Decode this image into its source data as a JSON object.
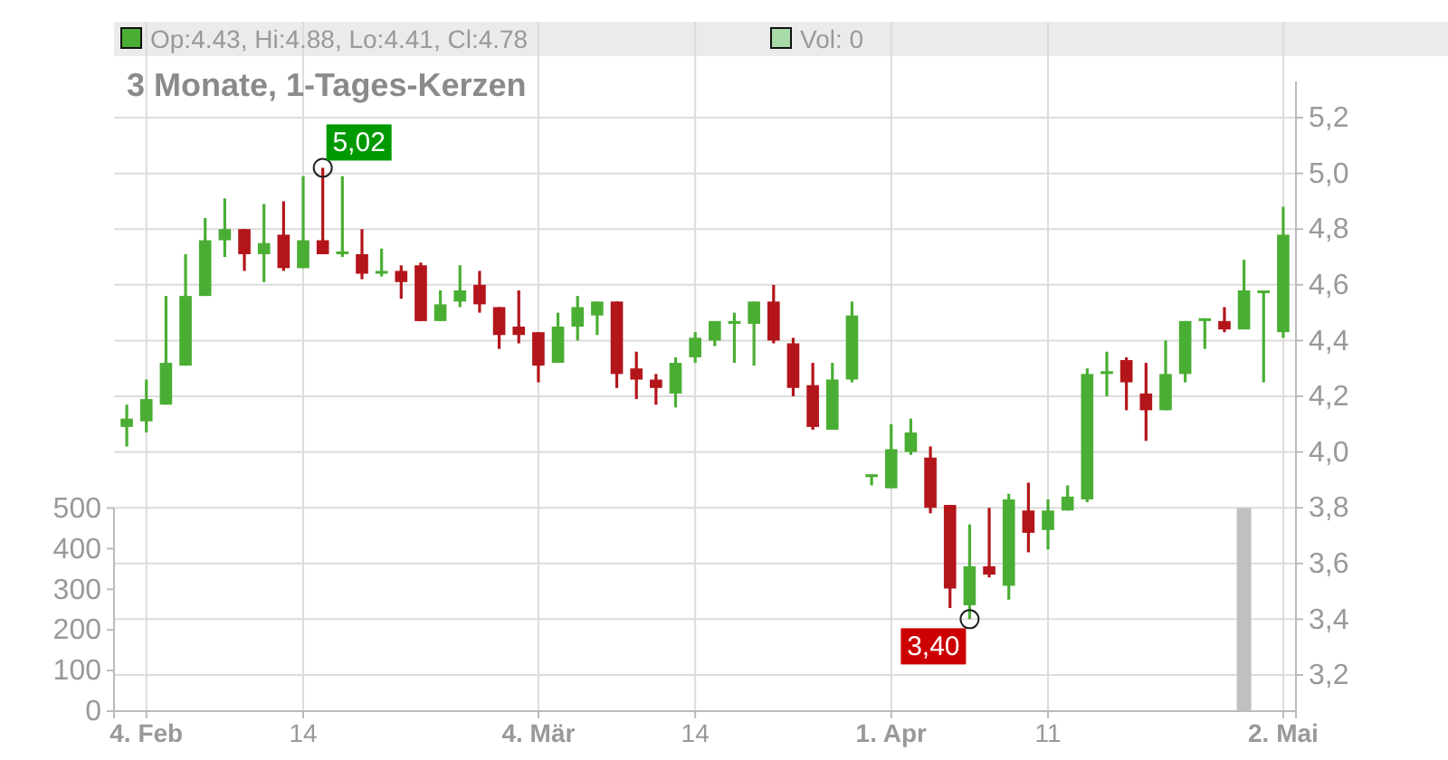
{
  "chart_data": {
    "type": "candlestick",
    "title": "3 Monate, 1-Tages-Kerzen",
    "categories": [
      null,
      "4. Feb",
      null,
      null,
      null,
      null,
      null,
      null,
      null,
      "14",
      null,
      null,
      null,
      null,
      null,
      null,
      null,
      null,
      null,
      null,
      null,
      "4. Mär",
      null,
      null,
      null,
      null,
      null,
      null,
      null,
      "14",
      null,
      null,
      null,
      null,
      null,
      null,
      null,
      null,
      null,
      "1. Apr",
      null,
      null,
      null,
      null,
      null,
      null,
      null,
      "11",
      null,
      null,
      null,
      null,
      null,
      null,
      null,
      null,
      null,
      null,
      null,
      "2. Mai"
    ],
    "series": [
      {
        "ohlc": [
          [
            4.09,
            4.17,
            4.02,
            4.12
          ],
          [
            4.11,
            4.26,
            4.07,
            4.19
          ],
          [
            4.17,
            4.56,
            4.17,
            4.32
          ],
          [
            4.31,
            4.71,
            4.31,
            4.56
          ],
          [
            4.56,
            4.84,
            4.56,
            4.76
          ],
          [
            4.76,
            4.91,
            4.7,
            4.8
          ],
          [
            4.8,
            4.8,
            4.65,
            4.71
          ],
          [
            4.71,
            4.89,
            4.61,
            4.75
          ],
          [
            4.78,
            4.9,
            4.65,
            4.66
          ],
          [
            4.66,
            4.99,
            4.66,
            4.76
          ],
          [
            4.76,
            5.02,
            4.71,
            4.71
          ],
          [
            4.71,
            4.99,
            4.7,
            4.72
          ],
          [
            4.71,
            4.8,
            4.62,
            4.64
          ],
          [
            4.64,
            4.73,
            4.63,
            4.65
          ],
          [
            4.65,
            4.67,
            4.55,
            4.61
          ],
          [
            4.67,
            4.68,
            4.47,
            4.47
          ],
          [
            4.47,
            4.58,
            4.47,
            4.53
          ],
          [
            4.54,
            4.67,
            4.52,
            4.58
          ],
          [
            4.6,
            4.65,
            4.5,
            4.53
          ],
          [
            4.52,
            4.52,
            4.37,
            4.42
          ],
          [
            4.45,
            4.58,
            4.39,
            4.42
          ],
          [
            4.43,
            4.43,
            4.25,
            4.31
          ],
          [
            4.32,
            4.5,
            4.32,
            4.45
          ],
          [
            4.45,
            4.56,
            4.4,
            4.52
          ],
          [
            4.49,
            4.54,
            4.42,
            4.54
          ],
          [
            4.54,
            4.54,
            4.23,
            4.28
          ],
          [
            4.3,
            4.36,
            4.19,
            4.26
          ],
          [
            4.26,
            4.28,
            4.17,
            4.23
          ],
          [
            4.21,
            4.34,
            4.16,
            4.32
          ],
          [
            4.34,
            4.43,
            4.32,
            4.41
          ],
          [
            4.4,
            4.47,
            4.38,
            4.47
          ],
          [
            4.46,
            4.5,
            4.32,
            4.47
          ],
          [
            4.46,
            4.54,
            4.31,
            4.54
          ],
          [
            4.54,
            4.6,
            4.39,
            4.4
          ],
          [
            4.39,
            4.41,
            4.2,
            4.23
          ],
          [
            4.24,
            4.32,
            4.08,
            4.09
          ],
          [
            4.08,
            4.32,
            4.08,
            4.26
          ],
          [
            4.26,
            4.54,
            4.25,
            4.49
          ],
          [
            3.91,
            3.92,
            3.88,
            3.92
          ],
          [
            3.87,
            4.1,
            3.87,
            4.01
          ],
          [
            4.0,
            4.12,
            3.99,
            4.07
          ],
          [
            3.98,
            4.02,
            3.78,
            3.8
          ],
          [
            3.81,
            3.81,
            3.44,
            3.51
          ],
          [
            3.45,
            3.74,
            3.4,
            3.59
          ],
          [
            3.59,
            3.8,
            3.55,
            3.56
          ],
          [
            3.52,
            3.85,
            3.47,
            3.83
          ],
          [
            3.79,
            3.89,
            3.64,
            3.71
          ],
          [
            3.72,
            3.83,
            3.65,
            3.79
          ],
          [
            3.79,
            3.88,
            3.79,
            3.84
          ],
          [
            3.83,
            4.3,
            3.82,
            4.28
          ],
          [
            4.28,
            4.36,
            4.2,
            4.29
          ],
          [
            4.33,
            4.34,
            4.15,
            4.25
          ],
          [
            4.21,
            4.32,
            4.04,
            4.15
          ],
          [
            4.15,
            4.4,
            4.15,
            4.28
          ],
          [
            4.28,
            4.47,
            4.25,
            4.47
          ],
          [
            4.47,
            4.48,
            4.37,
            4.48
          ],
          [
            4.47,
            4.52,
            4.43,
            4.44
          ],
          [
            4.44,
            4.69,
            4.44,
            4.58
          ],
          [
            4.57,
            4.58,
            4.25,
            4.58
          ],
          [
            4.43,
            4.88,
            4.41,
            4.78
          ]
        ],
        "colors": [
          "#4aae34",
          "#4aae34",
          "#4aae34",
          "#4aae34",
          "#4aae34",
          "#4aae34",
          "#b3151a",
          "#4aae34",
          "#b3151a",
          "#4aae34",
          "#b3151a",
          "#4aae34",
          "#b3151a",
          "#4aae34",
          "#b3151a",
          "#b3151a",
          "#4aae34",
          "#4aae34",
          "#b3151a",
          "#b3151a",
          "#b3151a",
          "#b3151a",
          "#4aae34",
          "#4aae34",
          "#4aae34",
          "#b3151a",
          "#b3151a",
          "#b3151a",
          "#4aae34",
          "#4aae34",
          "#4aae34",
          "#4aae34",
          "#4aae34",
          "#b3151a",
          "#b3151a",
          "#b3151a",
          "#4aae34",
          "#4aae34",
          "#4aae34",
          "#4aae34",
          "#4aae34",
          "#b3151a",
          "#b3151a",
          "#4aae34",
          "#b3151a",
          "#4aae34",
          "#b3151a",
          "#4aae34",
          "#4aae34",
          "#4aae34",
          "#4aae34",
          "#b3151a",
          "#b3151a",
          "#4aae34",
          "#4aae34",
          "#4aae34",
          "#b3151a",
          "#4aae34",
          "#4aae34",
          "#4aae34"
        ]
      },
      {
        "type": "bar",
        "axis": "y2",
        "color": "#c0c0c0",
        "values": [
          0,
          0,
          0,
          0,
          0,
          0,
          0,
          0,
          0,
          0,
          0,
          0,
          0,
          0,
          0,
          0,
          0,
          0,
          0,
          0,
          0,
          0,
          0,
          0,
          0,
          0,
          0,
          0,
          0,
          0,
          0,
          0,
          0,
          0,
          0,
          0,
          0,
          0,
          0,
          0,
          0,
          0,
          0,
          0,
          0,
          0,
          0,
          0,
          0,
          0,
          0,
          0,
          0,
          0,
          0,
          0,
          0,
          500,
          0,
          0
        ]
      }
    ],
    "ylim": [
      3.07,
      5.33
    ],
    "yticks": [
      {
        "value": 3.2,
        "label": "3,2"
      },
      {
        "value": 3.4,
        "label": "3,4"
      },
      {
        "value": 3.6,
        "label": "3,6"
      },
      {
        "value": 3.8,
        "label": "3,8"
      },
      {
        "value": 4.0,
        "label": "4,0"
      },
      {
        "value": 4.2,
        "label": "4,2"
      },
      {
        "value": 4.4,
        "label": "4,4"
      },
      {
        "value": 4.6,
        "label": "4,6"
      },
      {
        "value": 4.8,
        "label": "4,8"
      },
      {
        "value": 5.0,
        "label": "5,0"
      },
      {
        "value": 5.2,
        "label": "5,2"
      }
    ],
    "y2lim": [
      0,
      1550
    ],
    "y2ticks": [
      0,
      100,
      200,
      300,
      400,
      500
    ],
    "grid": true,
    "annotations": [
      "5,02",
      "3,40",
      "Op:4.43, Hi:4.88, Lo:4.41, Cl:4.78",
      "Vol: 0"
    ]
  }
}
